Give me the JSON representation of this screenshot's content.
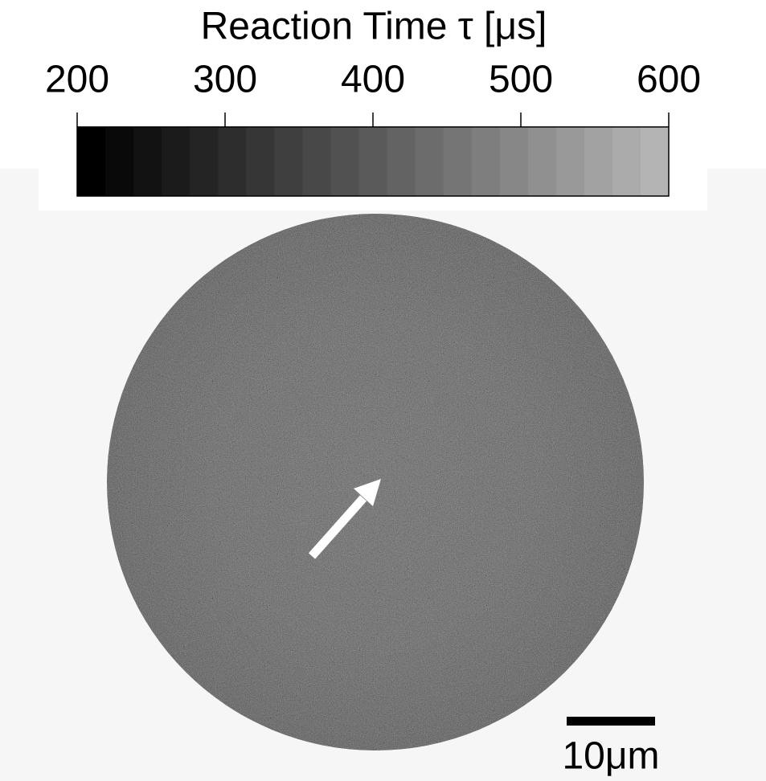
{
  "chart_data": {
    "type": "colormap-image",
    "title": "Reaction Time τ [μs]",
    "colorbar": {
      "lim": [
        200,
        600
      ],
      "ticks": [
        200,
        300,
        400,
        500,
        600
      ],
      "colors": [
        "#000000",
        "#b4b4b4"
      ],
      "steps": 21
    },
    "scale_bar": "10μm"
  }
}
